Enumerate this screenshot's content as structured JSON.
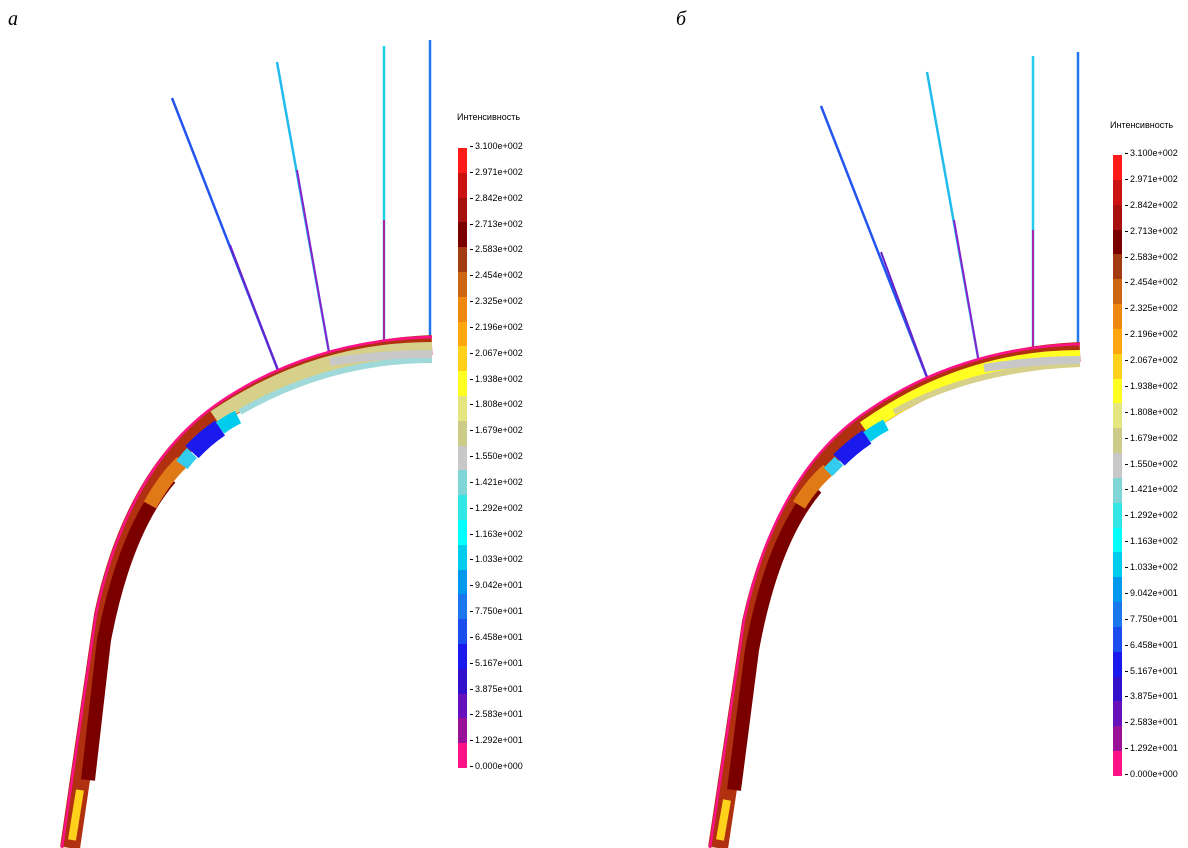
{
  "panels": [
    {
      "label": "а"
    },
    {
      "label": "б"
    }
  ],
  "legend": {
    "title": "Интенсивность",
    "ticks": [
      "3.100e+002",
      "2.971e+002",
      "2.842e+002",
      "2.713e+002",
      "2.583e+002",
      "2.454e+002",
      "2.325e+002",
      "2.196e+002",
      "2.067e+002",
      "1.938e+002",
      "1.808e+002",
      "1.679e+002",
      "1.550e+002",
      "1.421e+002",
      "1.292e+002",
      "1.163e+002",
      "1.033e+002",
      "9.042e+001",
      "7.750e+001",
      "6.458e+001",
      "5.167e+001",
      "3.875e+001",
      "2.583e+001",
      "1.292e+001",
      "0.000e+000"
    ],
    "colors": [
      "#ff1a1a",
      "#cc1111",
      "#a80f0f",
      "#7a0000",
      "#a23a12",
      "#cc6611",
      "#ee8811",
      "#ffa611",
      "#ffd11a",
      "#ffff22",
      "#e6e680",
      "#cccc88",
      "#c8c8c8",
      "#80d6d6",
      "#33e6e6",
      "#00ffff",
      "#00ccee",
      "#0099ee",
      "#1a77ee",
      "#1a4cee",
      "#1a1aee",
      "#3311cc",
      "#6611bb",
      "#991199",
      "#ff1188"
    ]
  }
}
